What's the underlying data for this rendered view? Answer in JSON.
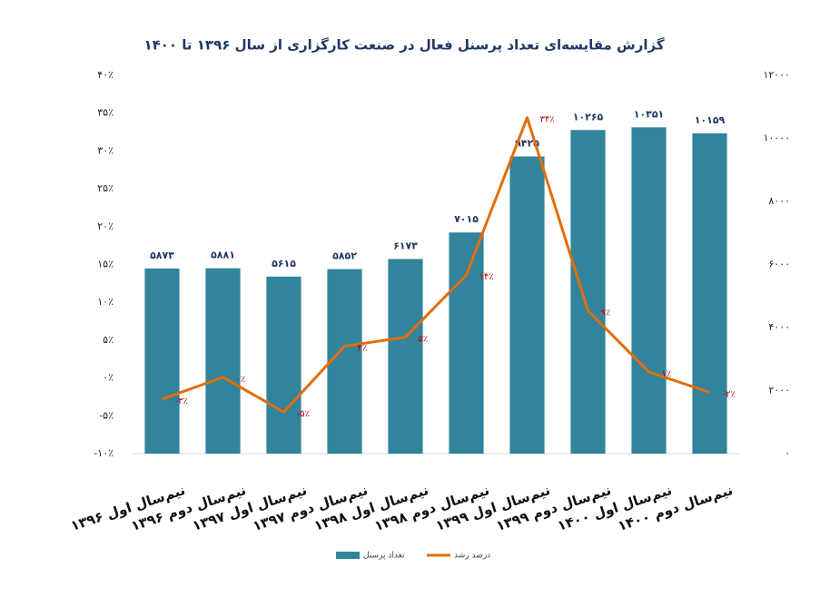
{
  "chart_data": {
    "type": "bar",
    "title": "گزارش مقایسه‌ای تعداد پرسنل فعال در صنعت کارگزاری از سال ۱۳۹۶ تا ۱۴۰۰",
    "categories": [
      "نیم‌سال اول ۱۳۹۶",
      "نیم‌سال دوم ۱۳۹۶",
      "نیم‌سال اول ۱۳۹۷",
      "نیم‌سال دوم ۱۳۹۷",
      "نیم‌سال اول ۱۳۹۸",
      "نیم‌سال دوم ۱۳۹۸",
      "نیم‌سال اول ۱۳۹۹",
      "نیم‌سال دوم ۱۳۹۹",
      "نیم‌سال اول ۱۴۰۰",
      "نیم‌سال دوم ۱۴۰۰"
    ],
    "series": [
      {
        "name": "تعداد پرسنل",
        "type": "bar",
        "axis": "y2",
        "color": "#31849b",
        "values": [
          5873,
          5881,
          5615,
          5852,
          6173,
          7015,
          9425,
          10265,
          10351,
          10159
        ],
        "value_labels": [
          "۵۸۷۳",
          "۵۸۸۱",
          "۵۶۱۵",
          "۵۸۵۲",
          "۶۱۷۳",
          "۷۰۱۵",
          "۹۴۲۵",
          "۱۰۲۶۵",
          "۱۰۳۵۱",
          "۱۰۱۵۹"
        ]
      },
      {
        "name": "درصد رشد",
        "type": "line",
        "color": "#e36c09",
        "values": [
          -2.8,
          0.1,
          -4.5,
          4.2,
          5.4,
          13.6,
          34.4,
          8.9,
          0.8,
          -1.9
        ],
        "value_labels": [
          "-۳٪",
          "۰٪",
          "-۵٪",
          "۴٪",
          "۵٪",
          "۱۴٪",
          "۳۴٪",
          "۹٪",
          "۱٪",
          "-۲٪"
        ]
      }
    ],
    "ylim": [
      -10,
      40
    ],
    "yticks": [
      {
        "value": -10,
        "label": "-۱۰٪"
      },
      {
        "value": -5,
        "label": "-۵٪"
      },
      {
        "value": 0,
        "label": "۰٪"
      },
      {
        "value": 5,
        "label": "۵٪"
      },
      {
        "value": 10,
        "label": "۱۰٪"
      },
      {
        "value": 15,
        "label": "۱۵٪"
      },
      {
        "value": 20,
        "label": "۲۰٪"
      },
      {
        "value": 25,
        "label": "۲۵٪"
      },
      {
        "value": 30,
        "label": "۳۰٪"
      },
      {
        "value": 35,
        "label": "۳۵٪"
      },
      {
        "value": 40,
        "label": "۴۰٪"
      }
    ],
    "y2lim": [
      0,
      12000
    ],
    "y2ticks": [
      {
        "value": 0,
        "label": "۰"
      },
      {
        "value": 2000,
        "label": "۲۰۰۰"
      },
      {
        "value": 4000,
        "label": "۴۰۰۰"
      },
      {
        "value": 6000,
        "label": "۶۰۰۰"
      },
      {
        "value": 8000,
        "label": "۸۰۰۰"
      },
      {
        "value": 10000,
        "label": "۱۰۰۰۰"
      },
      {
        "value": 12000,
        "label": "۱۲۰۰۰"
      }
    ],
    "legend": "bottom"
  }
}
